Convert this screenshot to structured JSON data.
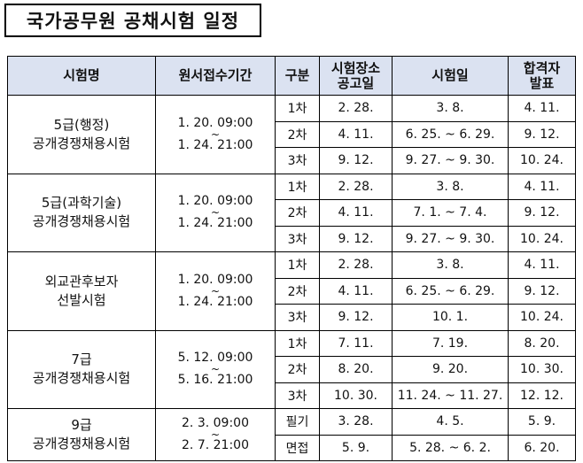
{
  "page_title": "국가공무원 공채시험 일정",
  "table": {
    "headers": {
      "exam_name": "시험명",
      "application_period": "원서접수기간",
      "round": "구분",
      "venue_notice": [
        "시험장소",
        "공고일"
      ],
      "exam_date": "시험일",
      "result_announcement": [
        "합격자",
        "발표"
      ]
    },
    "groups": [
      {
        "name": [
          "5급(행정)",
          "공개경쟁채용시험"
        ],
        "period": {
          "start": "1. 20.  09:00",
          "sep": "~",
          "end": "1. 24.  21:00"
        },
        "rows": [
          {
            "round": "1차",
            "notice": "2. 28.",
            "exam": "3. 8.",
            "result": "4. 11."
          },
          {
            "round": "2차",
            "notice": "4. 11.",
            "exam": "6. 25. ~ 6. 29.",
            "result": "9. 12."
          },
          {
            "round": "3차",
            "notice": "9. 12.",
            "exam": "9. 27. ~ 9. 30.",
            "result": "10. 24."
          }
        ]
      },
      {
        "name": [
          "5급(과학기술)",
          "공개경쟁채용시험"
        ],
        "period": {
          "start": "1. 20.  09:00",
          "sep": "~",
          "end": "1. 24.  21:00"
        },
        "rows": [
          {
            "round": "1차",
            "notice": "2. 28.",
            "exam": "3. 8.",
            "result": "4. 11."
          },
          {
            "round": "2차",
            "notice": "4. 11.",
            "exam": "7. 1. ~ 7. 4.",
            "result": "9. 12."
          },
          {
            "round": "3차",
            "notice": "9. 12.",
            "exam": "9. 27. ~ 9. 30.",
            "result": "10. 24."
          }
        ]
      },
      {
        "name": [
          "외교관후보자",
          "선발시험"
        ],
        "period": {
          "start": "1. 20.  09:00",
          "sep": "~",
          "end": "1. 24.  21:00"
        },
        "rows": [
          {
            "round": "1차",
            "notice": "2. 28.",
            "exam": "3. 8.",
            "result": "4. 11."
          },
          {
            "round": "2차",
            "notice": "4. 11.",
            "exam": "6. 25. ~ 6. 29.",
            "result": "9. 12."
          },
          {
            "round": "3차",
            "notice": "9. 12.",
            "exam": "10. 1.",
            "result": "10. 24."
          }
        ]
      },
      {
        "name": [
          "7급",
          "공개경쟁채용시험"
        ],
        "period": {
          "start": "5. 12.  09:00",
          "sep": "~",
          "end": "5. 16.  21:00"
        },
        "rows": [
          {
            "round": "1차",
            "notice": "7. 11.",
            "exam": "7. 19.",
            "result": "8. 20."
          },
          {
            "round": "2차",
            "notice": "8. 20.",
            "exam": "9. 20.",
            "result": "10. 30."
          },
          {
            "round": "3차",
            "notice": "10. 30.",
            "exam": "11. 24. ~ 11. 27.",
            "result": "12. 12."
          }
        ]
      },
      {
        "name": [
          "9급",
          "공개경쟁채용시험"
        ],
        "period": {
          "start": "2. 3.  09:00",
          "sep": "~",
          "end": "2. 7.  21:00"
        },
        "rows": [
          {
            "round": "필기",
            "notice": "3. 28.",
            "exam": "4. 5.",
            "result": "5. 9."
          },
          {
            "round": "면접",
            "notice": "5. 9.",
            "exam": "5. 28. ~ 6. 2.",
            "result": "6. 20."
          }
        ]
      }
    ]
  }
}
